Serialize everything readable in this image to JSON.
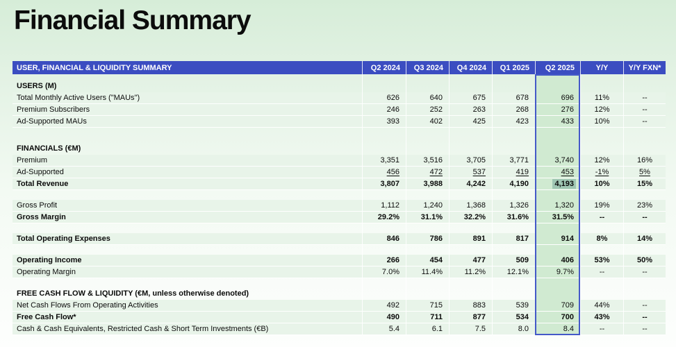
{
  "page": {
    "title": "Financial Summary"
  },
  "table": {
    "header": {
      "label": "USER, FINANCIAL & LIQUIDITY SUMMARY",
      "columns": [
        "Q2 2024",
        "Q3 2024",
        "Q4 2024",
        "Q1 2025",
        "Q2 2025",
        "Y/Y",
        "Y/Y FXN*"
      ]
    },
    "highlight_column": "Q2 2025",
    "selected_cell": {
      "row": "Total Revenue",
      "column": "Q2 2025",
      "value": "4,193"
    },
    "rows": [
      {
        "type": "gap-sm"
      },
      {
        "type": "section",
        "label": "USERS (M)"
      },
      {
        "type": "data",
        "label": "Total Monthly Active Users (\"MAUs\")",
        "values": [
          "626",
          "640",
          "675",
          "678",
          "696",
          "11%",
          "--"
        ]
      },
      {
        "type": "data",
        "label": "Premium Subscribers",
        "values": [
          "246",
          "252",
          "263",
          "268",
          "276",
          "12%",
          "--"
        ]
      },
      {
        "type": "data",
        "label": "Ad-Supported MAUs",
        "values": [
          "393",
          "402",
          "425",
          "423",
          "433",
          "10%",
          "--"
        ]
      },
      {
        "type": "gap-lg"
      },
      {
        "type": "section",
        "label": "FINANCIALS (€M)"
      },
      {
        "type": "data",
        "label": "Premium",
        "values": [
          "3,351",
          "3,516",
          "3,705",
          "3,771",
          "3,740",
          "12%",
          "16%"
        ]
      },
      {
        "type": "data",
        "label": "Ad-Supported",
        "underline": true,
        "values": [
          "456",
          "472",
          "537",
          "419",
          "453",
          "-1%",
          "5%"
        ]
      },
      {
        "type": "data",
        "label": "Total Revenue",
        "bold": true,
        "selected": 4,
        "values": [
          "3,807",
          "3,988",
          "4,242",
          "4,190",
          "4,193",
          "10%",
          "15%"
        ]
      },
      {
        "type": "gap"
      },
      {
        "type": "data",
        "label": "Gross Profit",
        "values": [
          "1,112",
          "1,240",
          "1,368",
          "1,326",
          "1,320",
          "19%",
          "23%"
        ]
      },
      {
        "type": "data",
        "label": "Gross Margin",
        "bold": true,
        "values": [
          "29.2%",
          "31.1%",
          "32.2%",
          "31.6%",
          "31.5%",
          "--",
          "--"
        ]
      },
      {
        "type": "gap"
      },
      {
        "type": "data",
        "label": "Total Operating Expenses",
        "bold": true,
        "values": [
          "846",
          "786",
          "891",
          "817",
          "914",
          "8%",
          "14%"
        ]
      },
      {
        "type": "gap"
      },
      {
        "type": "data",
        "label": "Operating Income",
        "bold": true,
        "values": [
          "266",
          "454",
          "477",
          "509",
          "406",
          "53%",
          "50%"
        ]
      },
      {
        "type": "data",
        "label": "Operating Margin",
        "values": [
          "7.0%",
          "11.4%",
          "11.2%",
          "12.1%",
          "9.7%",
          "--",
          "--"
        ]
      },
      {
        "type": "gap"
      },
      {
        "type": "section",
        "label": "FREE CASH FLOW & LIQUIDITY (€M, unless otherwise denoted)"
      },
      {
        "type": "data",
        "label": "Net Cash Flows From Operating Activities",
        "values": [
          "492",
          "715",
          "883",
          "539",
          "709",
          "44%",
          "--"
        ]
      },
      {
        "type": "data",
        "label": "Free Cash Flow*",
        "bold": true,
        "values": [
          "490",
          "711",
          "877",
          "534",
          "700",
          "43%",
          "--"
        ]
      },
      {
        "type": "data",
        "label": "Cash & Cash Equivalents, Restricted Cash & Short Term Investments (€B)",
        "values": [
          "5.4",
          "6.1",
          "7.5",
          "8.0",
          "8.4",
          "--",
          "--"
        ]
      }
    ]
  },
  "colors": {
    "header_blue": "#3b4dc1",
    "band_border_blue": "#4459c8",
    "band_fill_green": "#d0ead1",
    "row_stripe_green": "#e8f4e9",
    "selected_cell_teal": "#9fc6b3",
    "bg_gradient_top": "#d6edd8",
    "title_black": "#0c0c0c"
  }
}
